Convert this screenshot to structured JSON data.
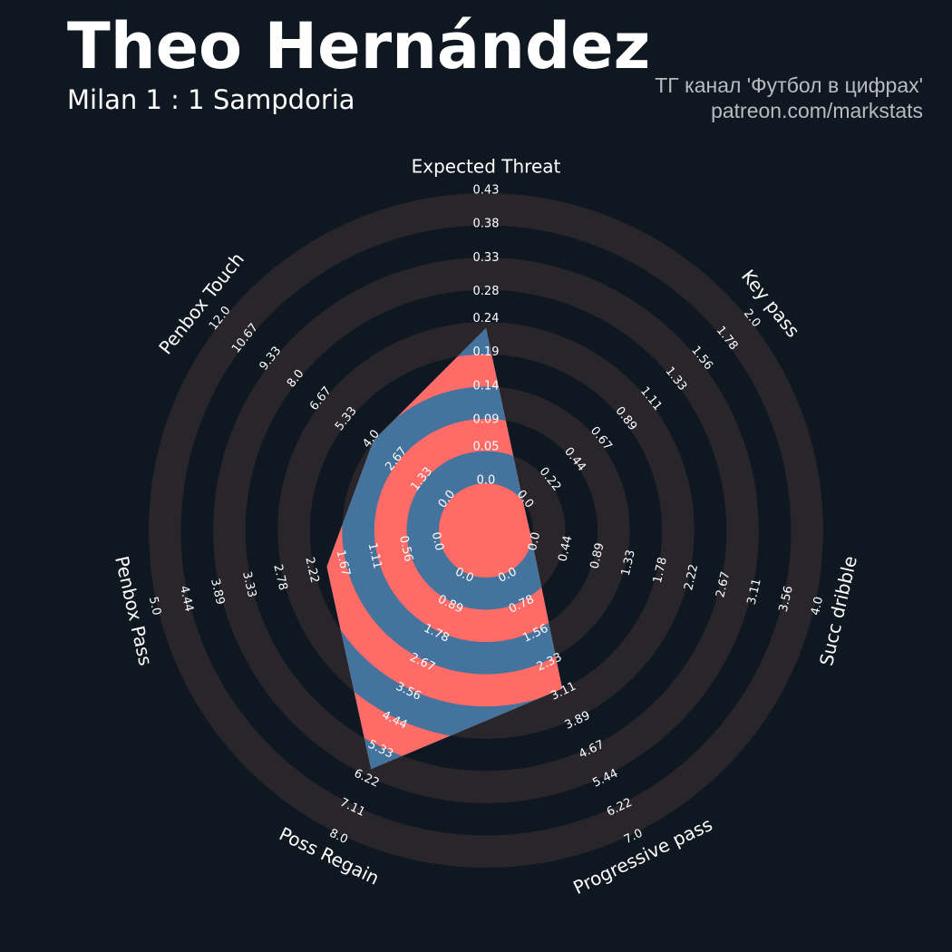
{
  "chart_data": {
    "type": "radar",
    "title": "Theo Hernández",
    "subtitle": "Milan 1 : 1 Sampdoria",
    "credits": [
      "ТГ канал 'Футбол в цифрах'",
      "patreon.com/markstats"
    ],
    "categories": [
      "Expected Threat",
      "Key pass",
      "Succ dribble",
      "Progressive pass",
      "Poss Regain",
      "Penbox Pass",
      "Penbox Touch"
    ],
    "values": [
      0.23,
      0,
      0,
      3.1,
      6,
      2,
      4
    ],
    "color": "#44739e",
    "alt_color": "#ff6b66",
    "radial_axes": [
      {
        "lim": [
          0,
          0.43
        ],
        "ticks": [
          {
            "value": 0,
            "label": "0.0"
          },
          0.05,
          0.09,
          0.14,
          0.19,
          0.24,
          0.28,
          0.33,
          0.38,
          0.43
        ]
      },
      {
        "lim": [
          0,
          2
        ],
        "ticks": [
          {
            "value": 0,
            "label": "0.0"
          },
          0.22,
          0.44,
          0.67,
          0.89,
          1.11,
          1.33,
          1.56,
          1.78,
          {
            "value": 2,
            "label": "2.0"
          }
        ]
      },
      {
        "lim": [
          0,
          4
        ],
        "ticks": [
          {
            "value": 0,
            "label": "0.0"
          },
          0.44,
          0.89,
          1.33,
          1.78,
          2.22,
          2.67,
          3.11,
          3.56,
          {
            "value": 4,
            "label": "4.0"
          }
        ]
      },
      {
        "lim": [
          0,
          7
        ],
        "ticks": [
          {
            "value": 0,
            "label": "0.0"
          },
          0.78,
          1.56,
          2.33,
          3.11,
          3.89,
          4.67,
          5.44,
          6.22,
          {
            "value": 7,
            "label": "7.0"
          }
        ]
      },
      {
        "lim": [
          0,
          8
        ],
        "ticks": [
          {
            "value": 0,
            "label": "0.0"
          },
          0.89,
          1.78,
          2.67,
          3.56,
          4.44,
          5.33,
          6.22,
          7.11,
          {
            "value": 8,
            "label": "8.0"
          }
        ]
      },
      {
        "lim": [
          0,
          5
        ],
        "ticks": [
          {
            "value": 0,
            "label": "0.0"
          },
          0.56,
          1.11,
          1.67,
          2.22,
          2.78,
          3.33,
          3.89,
          4.44,
          {
            "value": 5,
            "label": "5.0"
          }
        ]
      },
      {
        "lim": [
          0,
          12
        ],
        "ticks": [
          {
            "value": 0,
            "label": "0.0"
          },
          1.33,
          2.67,
          {
            "value": 4,
            "label": "4.0"
          },
          5.33,
          6.67,
          {
            "value": 8,
            "label": "8.0"
          },
          9.33,
          10.67,
          {
            "value": 12,
            "label": "12.0"
          }
        ]
      }
    ]
  }
}
